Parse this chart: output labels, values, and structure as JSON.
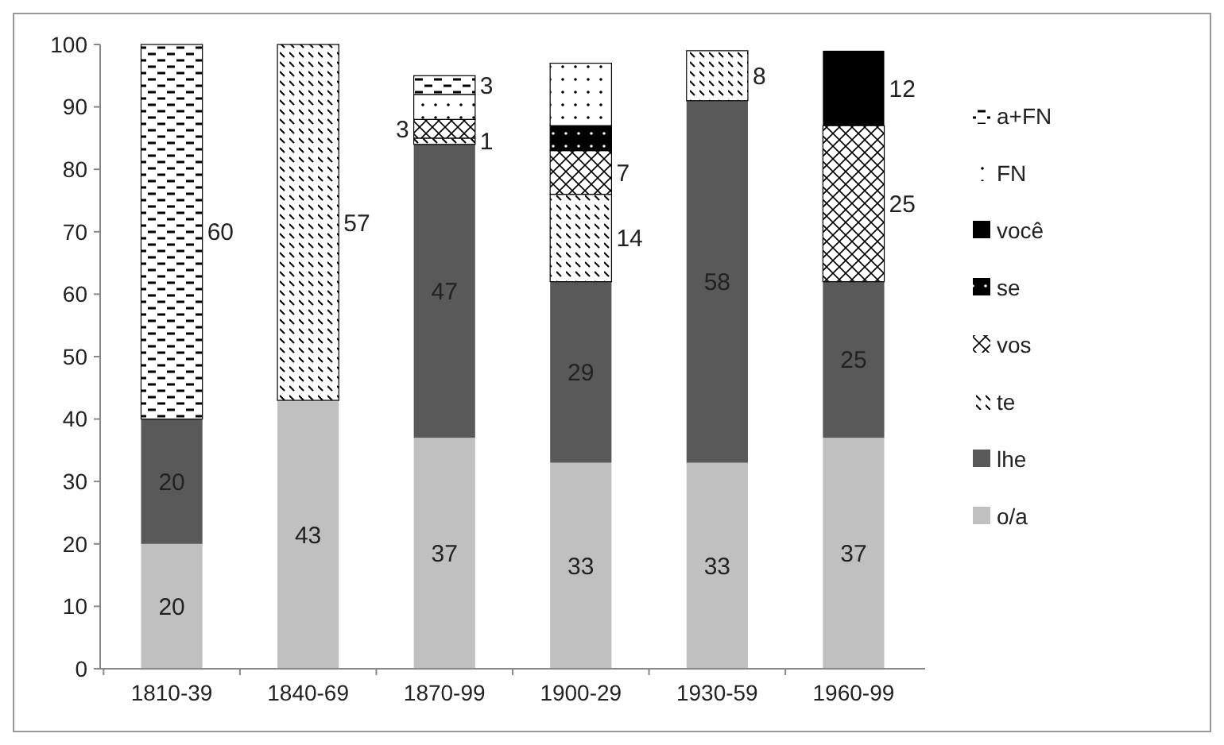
{
  "chart_data": {
    "type": "bar",
    "stacked": true,
    "categories": [
      "1810-39",
      "1840-69",
      "1870-99",
      "1900-29",
      "1930-59",
      "1960-99"
    ],
    "ylim": [
      0,
      100
    ],
    "yticks": [
      0,
      10,
      20,
      30,
      40,
      50,
      60,
      70,
      80,
      90,
      100
    ],
    "grid": false,
    "legend": "right",
    "series": [
      {
        "name": "o/a",
        "color": "#c0c0c0",
        "values": [
          20,
          43,
          37,
          33,
          33,
          37
        ],
        "value_labels": [
          "20",
          "43",
          "37",
          "33",
          "33",
          "37"
        ]
      },
      {
        "name": "lhe",
        "color": "#595959",
        "values": [
          20,
          null,
          47,
          29,
          58,
          25
        ],
        "value_labels": [
          "20",
          null,
          "47",
          "29",
          "58",
          "25"
        ]
      },
      {
        "name": "te",
        "color": "#000000",
        "values": [
          null,
          57,
          1,
          14,
          8,
          null
        ],
        "value_labels": [
          null,
          "57",
          "1",
          "14",
          "8",
          null
        ]
      },
      {
        "name": "vos",
        "color": "#000000",
        "values": [
          null,
          null,
          3,
          7,
          null,
          25
        ],
        "value_labels": [
          null,
          null,
          "3",
          "7",
          null,
          "25"
        ]
      },
      {
        "name": "se",
        "color": "#000000",
        "values": [
          null,
          null,
          null,
          4,
          null,
          null
        ],
        "value_labels": [
          null,
          null,
          null,
          null,
          null,
          null
        ]
      },
      {
        "name": "você",
        "color": "#000000",
        "values": [
          null,
          null,
          null,
          null,
          null,
          12
        ],
        "value_labels": [
          null,
          null,
          null,
          null,
          null,
          "12"
        ]
      },
      {
        "name": "FN",
        "color": "#000000",
        "values": [
          null,
          null,
          4,
          10,
          null,
          null
        ],
        "value_labels": [
          null,
          null,
          null,
          null,
          null,
          null
        ]
      },
      {
        "name": "a+FN",
        "color": "#000000",
        "values": [
          60,
          null,
          3,
          null,
          null,
          null
        ],
        "value_labels": [
          "60",
          null,
          "3",
          null,
          null,
          null
        ]
      }
    ]
  }
}
